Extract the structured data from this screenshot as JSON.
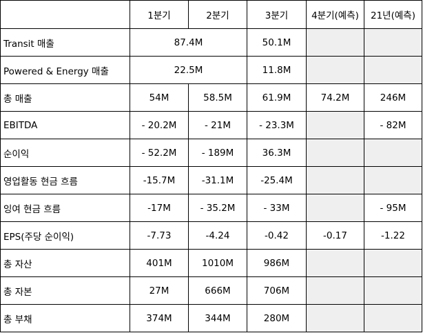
{
  "columns": [
    "",
    "1분기",
    "2분기",
    "3분기",
    "4분기(예측)",
    "21년(예측)"
  ],
  "rows": {
    "transit": {
      "label": "Transit 매출",
      "h1": "87.4M",
      "q3": "50.1M"
    },
    "powered": {
      "label": "Powered & Energy 매출",
      "h1": "22.5M",
      "q3": "11.8M"
    },
    "total_sales": {
      "label": "총 매출",
      "q1": "54M",
      "q2": "58.5M",
      "q3": "61.9M",
      "q4": "74.2M",
      "y21": "246M"
    },
    "ebitda": {
      "label": "EBITDA",
      "q1": "- 20.2M",
      "q2": "- 21M",
      "q3": "- 23.3M",
      "q4": "",
      "y21": "- 82M"
    },
    "net_income": {
      "label": "순이익",
      "q1": "- 52.2M",
      "q2": "- 189M",
      "q3": "36.3M",
      "q4": "",
      "y21": ""
    },
    "op_cash": {
      "label": "영업활동 현금 흐름",
      "q1": "-15.7M",
      "q2": "-31.1M",
      "q3": "-25.4M",
      "q4": "",
      "y21": ""
    },
    "free_cash": {
      "label": "잉여 현금 흐름",
      "q1": "-17M",
      "q2": "- 35.2M",
      "q3": "- 33M",
      "q4": "",
      "y21": "- 95M"
    },
    "eps": {
      "label": "EPS(주당 순이익)",
      "q1": "-7.73",
      "q2": "-4.24",
      "q3": "-0.42",
      "q4": "-0.17",
      "y21": "-1.22"
    },
    "total_assets": {
      "label": "총 자산",
      "q1": "401M",
      "q2": "1010M",
      "q3": "986M",
      "q4": "",
      "y21": ""
    },
    "total_equity": {
      "label": "총 자본",
      "q1": "27M",
      "q2": "666M",
      "q3": "706M",
      "q4": "",
      "y21": ""
    },
    "total_liabilities": {
      "label": "총 부채",
      "q1": "374M",
      "q2": "344M",
      "q3": "280M",
      "q4": "",
      "y21": ""
    }
  },
  "colors": {
    "border": "#000000",
    "shaded_cell": "#efefef",
    "background": "#ffffff"
  }
}
